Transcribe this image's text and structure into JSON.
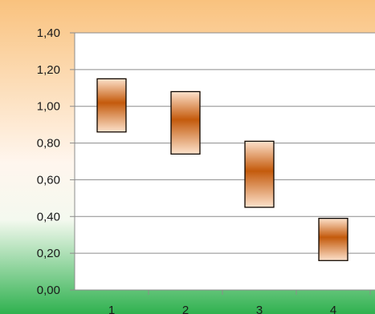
{
  "chart_data": {
    "type": "bar",
    "subtype": "floating-range",
    "categories": [
      "1",
      "2",
      "3",
      "4"
    ],
    "series": [
      {
        "low": [
          0.86,
          0.74,
          0.45,
          0.16
        ],
        "high": [
          1.15,
          1.08,
          0.81,
          0.39
        ]
      }
    ],
    "ylim": [
      0,
      1.4
    ],
    "y_ticks": [
      "0,00",
      "0,20",
      "0,40",
      "0,60",
      "0,80",
      "1,00",
      "1,20",
      "1,40"
    ],
    "grid": true,
    "legend": "none",
    "title": "",
    "xlabel": "",
    "ylabel": ""
  },
  "colors": {
    "background_top": "#f9c27e",
    "background_mid": "#fffaf5",
    "background_bottom": "#2fb14f",
    "plot_area": "#ffffff",
    "gridline": "#8c8c8c",
    "bar_dark": "#c45a0c",
    "bar_light": "#fde2cc",
    "bar_edge": "#000000"
  }
}
